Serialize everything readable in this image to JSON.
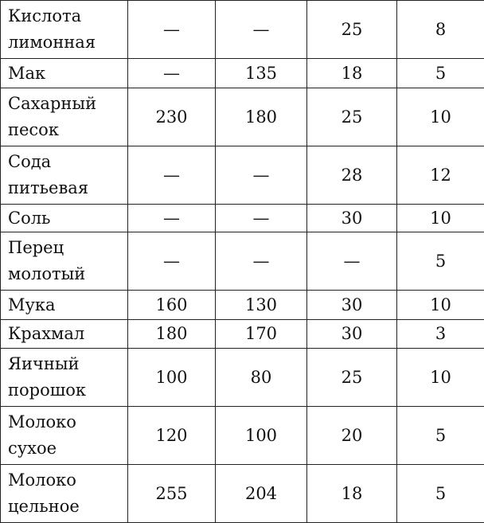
{
  "rows": [
    {
      "name": [
        "Кислота",
        "лимонная"
      ],
      "values": [
        "—",
        "—",
        "25",
        "8"
      ]
    },
    {
      "name": [
        "Мак"
      ],
      "values": [
        "—",
        "135",
        "18",
        "5"
      ]
    },
    {
      "name": [
        "Сахарный",
        "песок"
      ],
      "values": [
        "230",
        "180",
        "25",
        "10"
      ]
    },
    {
      "name": [
        "Сода",
        "питьевая"
      ],
      "values": [
        "—",
        "—",
        "28",
        "12"
      ]
    },
    {
      "name": [
        "Соль"
      ],
      "values": [
        "—",
        "—",
        "30",
        "10"
      ]
    },
    {
      "name": [
        "Перец",
        "молотый"
      ],
      "values": [
        "—",
        "—",
        "—",
        "5"
      ]
    },
    {
      "name": [
        "Мука"
      ],
      "values": [
        "160",
        "130",
        "30",
        "10"
      ]
    },
    {
      "name": [
        "Крахмал"
      ],
      "values": [
        "180",
        "170",
        "30",
        "3"
      ]
    },
    {
      "name": [
        "Яичный",
        "порошок"
      ],
      "values": [
        "100",
        "80",
        "25",
        "10"
      ]
    },
    {
      "name": [
        "Молоко",
        "сухое"
      ],
      "values": [
        "120",
        "100",
        "20",
        "5"
      ]
    },
    {
      "name": [
        "Молоко",
        "цельное"
      ],
      "values": [
        "255",
        "204",
        "18",
        "5"
      ]
    }
  ]
}
